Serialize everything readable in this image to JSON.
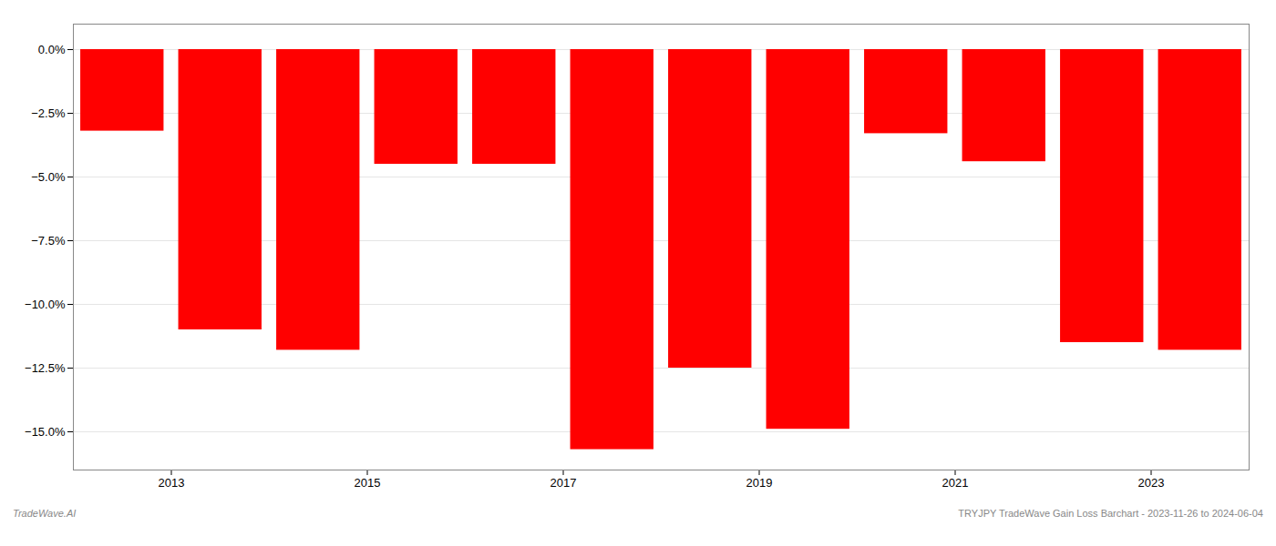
{
  "chart_data": {
    "type": "bar",
    "x": [
      2012.5,
      2013.5,
      2014.5,
      2015.5,
      2016.5,
      2017.5,
      2018.5,
      2019.5,
      2020.5,
      2021.5,
      2022.5,
      2023.5
    ],
    "values": [
      -3.2,
      -11.0,
      -11.8,
      -4.5,
      -4.5,
      -15.7,
      -12.5,
      -14.9,
      -3.3,
      -4.4,
      -11.5,
      -11.8
    ],
    "color": "#ff0000",
    "xlim": [
      2012.0,
      2024.0
    ],
    "xticks": [
      2013,
      2015,
      2017,
      2019,
      2021,
      2023
    ],
    "ylim": [
      -16.5,
      1.0
    ],
    "yticks": [
      {
        "value": 0.0,
        "label": "0.0%"
      },
      {
        "value": -2.5,
        "label": "−2.5%"
      },
      {
        "value": -5.0,
        "label": "−5.0%"
      },
      {
        "value": -7.5,
        "label": "−7.5%"
      },
      {
        "value": -10.0,
        "label": "−10.0%"
      },
      {
        "value": -12.5,
        "label": "−12.5%"
      },
      {
        "value": -15.0,
        "label": "−15.0%"
      }
    ],
    "grid": true,
    "annotations": [
      "TradeWave.AI",
      "TRYJPY TradeWave Gain Loss Barchart - 2023-11-26 to 2024-06-04"
    ]
  }
}
